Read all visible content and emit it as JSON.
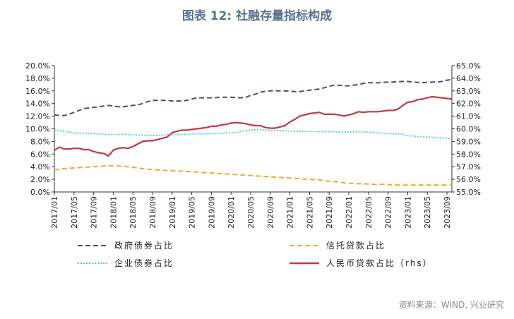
{
  "title": "图表 12: 社融存量指标构成",
  "source": "资料来源：WIND, 兴业研究",
  "chart_data": {
    "type": "line",
    "x": [
      "2017/01",
      "2017/02",
      "2017/03",
      "2017/04",
      "2017/05",
      "2017/06",
      "2017/07",
      "2017/08",
      "2017/09",
      "2017/10",
      "2017/11",
      "2017/12",
      "2018/01",
      "2018/02",
      "2018/03",
      "2018/04",
      "2018/05",
      "2018/06",
      "2018/07",
      "2018/08",
      "2018/09",
      "2018/10",
      "2018/11",
      "2018/12",
      "2019/01",
      "2019/02",
      "2019/03",
      "2019/04",
      "2019/05",
      "2019/06",
      "2019/07",
      "2019/08",
      "2019/09",
      "2019/10",
      "2019/11",
      "2019/12",
      "2020/01",
      "2020/02",
      "2020/03",
      "2020/04",
      "2020/05",
      "2020/06",
      "2020/07",
      "2020/08",
      "2020/09",
      "2020/10",
      "2020/11",
      "2020/12",
      "2021/01",
      "2021/02",
      "2021/03",
      "2021/04",
      "2021/05",
      "2021/06",
      "2021/07",
      "2021/08",
      "2021/09",
      "2021/10",
      "2021/11",
      "2021/12",
      "2022/01",
      "2022/02",
      "2022/03",
      "2022/04",
      "2022/05",
      "2022/06",
      "2022/07",
      "2022/08",
      "2022/09",
      "2022/10",
      "2022/11",
      "2022/12",
      "2023/01",
      "2023/02",
      "2023/03",
      "2023/04",
      "2023/05",
      "2023/06",
      "2023/07",
      "2023/08",
      "2023/09",
      "2023/10"
    ],
    "x_tick_labels": [
      "2017/01",
      "2017/05",
      "2017/09",
      "2018/01",
      "2018/05",
      "2018/09",
      "2019/01",
      "2019/05",
      "2019/09",
      "2020/01",
      "2020/05",
      "2020/09",
      "2021/01",
      "2021/05",
      "2021/09",
      "2022/01",
      "2022/05",
      "2022/09",
      "2023/01",
      "2023/05",
      "2023/09"
    ],
    "y_left_ticks": [
      "0.0%",
      "2.0%",
      "4.0%",
      "6.0%",
      "8.0%",
      "10.0%",
      "12.0%",
      "14.0%",
      "16.0%",
      "18.0%",
      "20.0%"
    ],
    "y_right_ticks": [
      "55.0%",
      "56.0%",
      "57.0%",
      "58.0%",
      "59.0%",
      "60.0%",
      "61.0%",
      "62.0%",
      "63.0%",
      "64.0%",
      "65.0%"
    ],
    "ylim_left": [
      0,
      20
    ],
    "ylim_right": [
      55,
      65
    ],
    "grid": false,
    "legend_position": "bottom",
    "series": [
      {
        "name": "政府债券占比",
        "axis": "left",
        "color": "#44546a",
        "style": "dashed",
        "values": [
          12.2,
          12.1,
          12.1,
          12.3,
          12.6,
          12.9,
          13.2,
          13.3,
          13.4,
          13.5,
          13.6,
          13.7,
          13.6,
          13.5,
          13.5,
          13.6,
          13.7,
          13.8,
          14.0,
          14.3,
          14.5,
          14.5,
          14.5,
          14.5,
          14.4,
          14.4,
          14.4,
          14.5,
          14.7,
          14.9,
          14.9,
          14.9,
          14.9,
          14.95,
          15.0,
          15.0,
          15.0,
          14.95,
          14.9,
          15.0,
          15.3,
          15.5,
          15.8,
          15.95,
          16.0,
          16.05,
          16.0,
          16.0,
          15.95,
          15.9,
          15.9,
          16.0,
          16.1,
          16.2,
          16.3,
          16.5,
          16.7,
          16.9,
          16.9,
          16.8,
          16.8,
          16.9,
          17.0,
          17.2,
          17.3,
          17.3,
          17.3,
          17.35,
          17.4,
          17.4,
          17.45,
          17.5,
          17.5,
          17.4,
          17.35,
          17.3,
          17.35,
          17.4,
          17.4,
          17.5,
          17.7,
          17.8
        ]
      },
      {
        "name": "信托贷款占比",
        "axis": "left",
        "color": "#f0a830",
        "style": "dashed",
        "values": [
          3.5,
          3.6,
          3.7,
          3.75,
          3.8,
          3.85,
          3.9,
          3.95,
          4.0,
          4.05,
          4.1,
          4.15,
          4.15,
          4.1,
          4.05,
          4.0,
          3.9,
          3.8,
          3.7,
          3.6,
          3.55,
          3.5,
          3.45,
          3.4,
          3.35,
          3.3,
          3.3,
          3.25,
          3.2,
          3.15,
          3.1,
          3.05,
          3.0,
          2.95,
          2.9,
          2.85,
          2.8,
          2.75,
          2.7,
          2.65,
          2.6,
          2.55,
          2.5,
          2.45,
          2.4,
          2.35,
          2.3,
          2.25,
          2.2,
          2.15,
          2.1,
          2.05,
          2.0,
          1.95,
          1.9,
          1.8,
          1.7,
          1.65,
          1.55,
          1.45,
          1.4,
          1.35,
          1.3,
          1.3,
          1.25,
          1.2,
          1.2,
          1.2,
          1.15,
          1.15,
          1.1,
          1.1,
          1.1,
          1.1,
          1.1,
          1.1,
          1.1,
          1.1,
          1.1,
          1.1,
          1.1,
          1.1
        ]
      },
      {
        "name": "企业债券占比",
        "axis": "left",
        "color": "#4fc7d4",
        "style": "dotted",
        "values": [
          9.8,
          9.7,
          9.6,
          9.5,
          9.3,
          9.3,
          9.3,
          9.3,
          9.25,
          9.2,
          9.15,
          9.1,
          9.1,
          9.1,
          9.15,
          9.1,
          9.05,
          9.0,
          9.0,
          8.95,
          8.9,
          8.95,
          9.0,
          9.1,
          9.1,
          9.1,
          9.15,
          9.15,
          9.2,
          9.2,
          9.2,
          9.2,
          9.25,
          9.25,
          9.3,
          9.35,
          9.35,
          9.4,
          9.6,
          9.7,
          9.8,
          9.85,
          9.9,
          9.8,
          9.75,
          9.7,
          9.7,
          9.7,
          9.65,
          9.6,
          9.6,
          9.6,
          9.6,
          9.55,
          9.55,
          9.55,
          9.55,
          9.55,
          9.5,
          9.5,
          9.5,
          9.5,
          9.55,
          9.5,
          9.45,
          9.4,
          9.35,
          9.3,
          9.25,
          9.2,
          9.2,
          9.15,
          8.9,
          8.85,
          8.8,
          8.75,
          8.7,
          8.65,
          8.6,
          8.55,
          8.5,
          8.45
        ]
      },
      {
        "name": "人民币贷款占比（rhs）",
        "axis": "right",
        "color": "#c0394a",
        "style": "solid",
        "values": [
          58.3,
          58.55,
          58.4,
          58.4,
          58.45,
          58.45,
          58.35,
          58.35,
          58.2,
          58.1,
          58.05,
          57.85,
          58.3,
          58.45,
          58.5,
          58.45,
          58.6,
          58.8,
          59.0,
          59.05,
          59.05,
          59.15,
          59.25,
          59.35,
          59.7,
          59.8,
          59.9,
          59.9,
          59.95,
          60.0,
          60.05,
          60.1,
          60.2,
          60.2,
          60.3,
          60.35,
          60.45,
          60.5,
          60.45,
          60.4,
          60.3,
          60.25,
          60.25,
          60.1,
          60.05,
          60.05,
          60.15,
          60.25,
          60.55,
          60.75,
          61.0,
          61.1,
          61.2,
          61.25,
          61.3,
          61.15,
          61.15,
          61.15,
          61.1,
          61.0,
          61.1,
          61.2,
          61.35,
          61.3,
          61.35,
          61.35,
          61.35,
          61.4,
          61.45,
          61.45,
          61.55,
          61.85,
          62.1,
          62.15,
          62.3,
          62.35,
          62.45,
          62.55,
          62.5,
          62.45,
          62.4,
          62.35
        ]
      }
    ]
  }
}
